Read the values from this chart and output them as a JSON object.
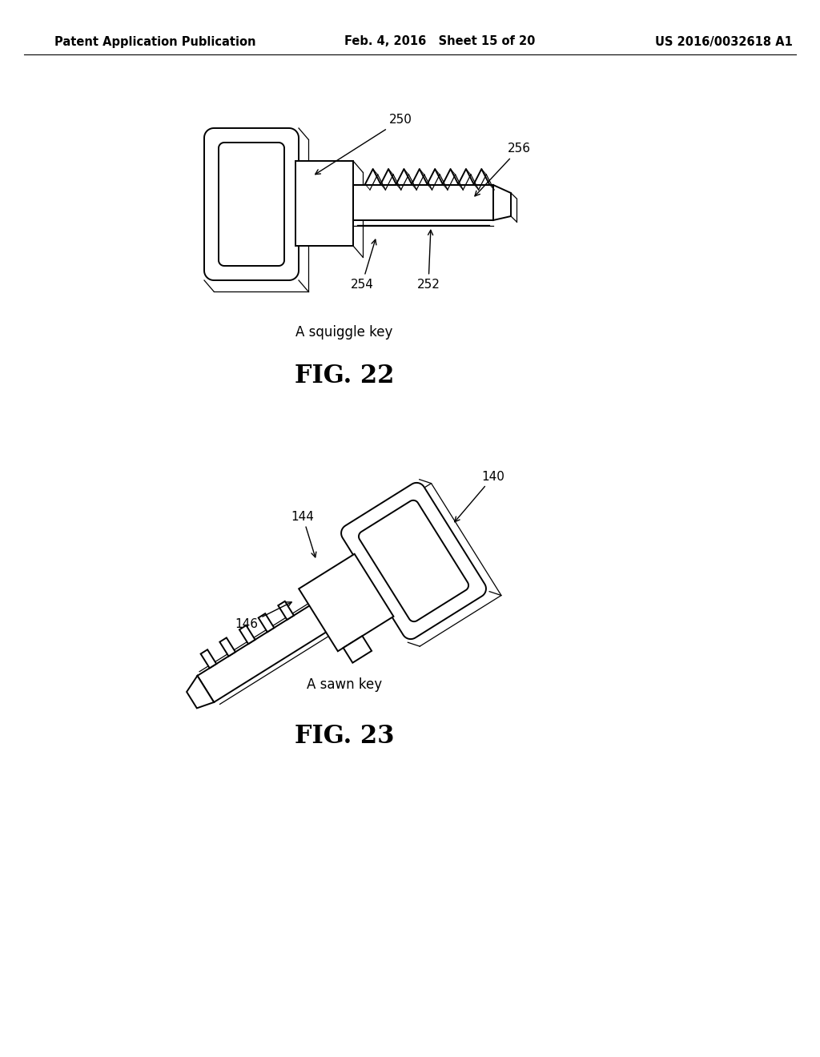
{
  "bg_color": "#ffffff",
  "header": {
    "left_text": "Patent Application Publication",
    "center_text": "Feb. 4, 2016   Sheet 15 of 20",
    "right_text": "US 2016/0032618 A1",
    "fontsize": 10.5
  },
  "line_color": "#000000",
  "text_color": "#000000",
  "lw_main": 1.4,
  "lw_thin": 0.9
}
